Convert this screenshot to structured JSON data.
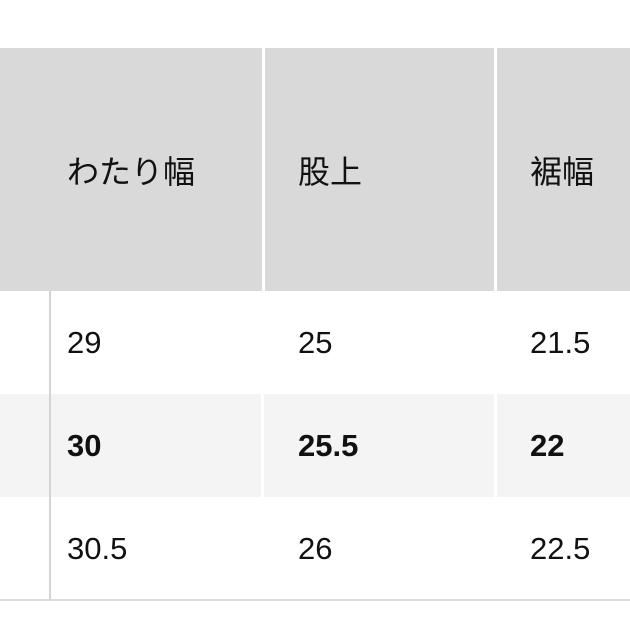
{
  "table": {
    "headers": [
      "わたり幅",
      "股上",
      "裾幅"
    ],
    "rows": [
      {
        "values": [
          "29",
          "25",
          "21.5"
        ],
        "highlighted": false
      },
      {
        "values": [
          "30",
          "25.5",
          "22"
        ],
        "highlighted": true
      },
      {
        "values": [
          "30.5",
          "26",
          "22.5"
        ],
        "highlighted": false
      }
    ],
    "colors": {
      "header_bg": "#d9d9d9",
      "highlight_bg": "#f4f4f4"
    }
  }
}
